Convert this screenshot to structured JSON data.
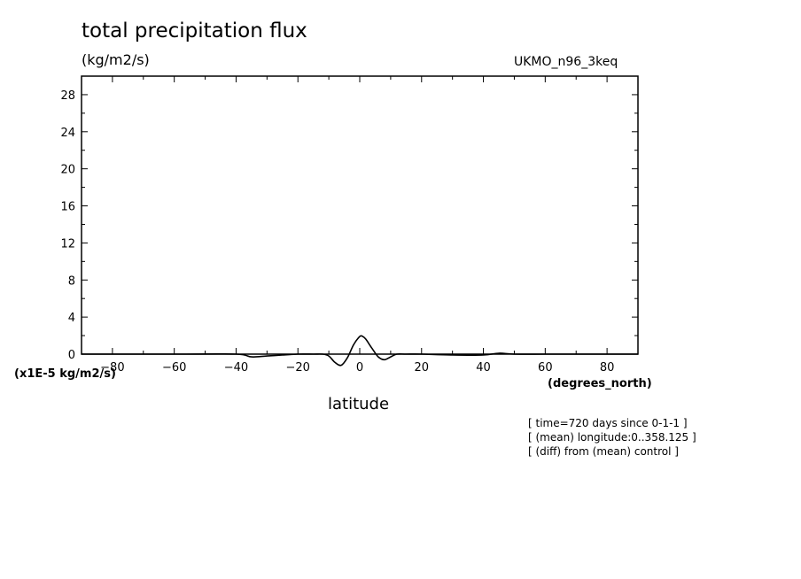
{
  "chart_data": {
    "type": "line",
    "title": "total precipitation flux",
    "units": "(kg/m2/s)",
    "model": "UKMO_n96_3keq",
    "scale_label": "(x1E-5 kg/m2/s)",
    "xlabel": "latitude",
    "xunits": "(degrees_north)",
    "xlim": [
      -90,
      90
    ],
    "ylim": [
      0,
      30
    ],
    "x_ticks": [
      -80,
      -60,
      -40,
      -20,
      0,
      20,
      40,
      60,
      80
    ],
    "y_ticks": [
      0,
      4,
      8,
      12,
      16,
      20,
      24,
      28
    ],
    "x": [
      -90,
      -80,
      -60,
      -40,
      -35,
      -30,
      -25,
      -20,
      -15,
      -12,
      -10,
      -8,
      -6,
      -4,
      -2,
      0,
      1,
      2,
      4,
      6,
      8,
      10,
      12,
      15,
      20,
      30,
      40,
      45,
      50,
      60,
      70,
      80,
      90
    ],
    "values": [
      0,
      0,
      0,
      0,
      -0.3,
      -0.2,
      -0.1,
      0,
      0,
      0,
      -0.2,
      -0.9,
      -1.2,
      -0.4,
      1.0,
      1.9,
      1.9,
      1.6,
      0.6,
      -0.3,
      -0.6,
      -0.3,
      0,
      0,
      0,
      -0.1,
      -0.1,
      0.1,
      0,
      0,
      0,
      0,
      0
    ]
  },
  "notes": [
    "[ time=720 days since 0-1-1 ]",
    "[ (mean) longitude:0..358.125 ]",
    "[ (diff) from (mean) control ]"
  ]
}
